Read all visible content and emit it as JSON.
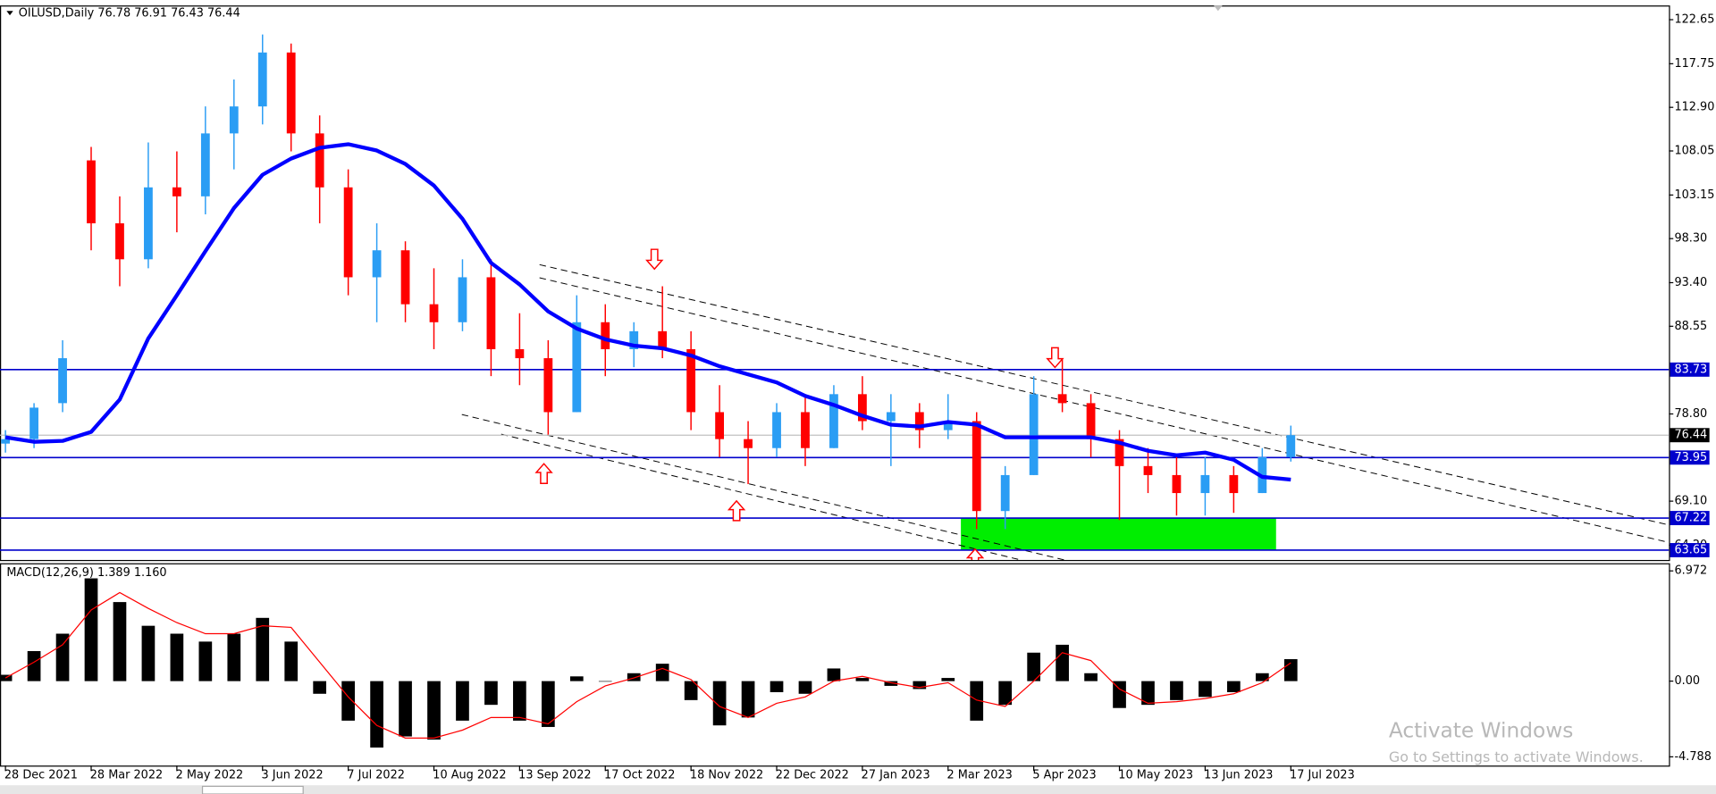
{
  "chart_data": [
    {
      "type": "candlestick",
      "title": "OILUSD,Daily",
      "ohlc_last": [
        76.78,
        76.91,
        76.43,
        76.44
      ],
      "categories": [
        "28 Dec 2021",
        null,
        null,
        "28 Mar 2022",
        null,
        null,
        "2 May 2022",
        null,
        null,
        "3 Jun 2022",
        null,
        null,
        "7 Jul 2022",
        null,
        null,
        "10 Aug 2022",
        null,
        null,
        "13 Sep 2022",
        null,
        null,
        "17 Oct 2022",
        null,
        null,
        "18 Nov 2022",
        null,
        null,
        "22 Dec 2022",
        null,
        null,
        "27 Jan 2023",
        null,
        null,
        "2 Mar 2023",
        null,
        null,
        "5 Apr 2023",
        null,
        null,
        "10 May 2023",
        null,
        null,
        "13 Jun 2023",
        null,
        null,
        "17 Jul 2023"
      ],
      "open": [
        75.5,
        76,
        80,
        107,
        100,
        96,
        104,
        103,
        110,
        113,
        119,
        110,
        104,
        94,
        97,
        91,
        89,
        94,
        86,
        85,
        79,
        89,
        86,
        88,
        86,
        79,
        76,
        75,
        79,
        75,
        81,
        78,
        79,
        77,
        78,
        68,
        72,
        81,
        80,
        76,
        73,
        72,
        70,
        72,
        70,
        74
      ],
      "high": [
        77,
        80,
        87,
        108.5,
        103,
        109,
        108,
        113,
        116,
        121,
        120,
        112,
        106,
        100,
        98,
        95,
        96,
        96,
        90,
        87,
        92,
        91,
        89,
        93,
        88,
        82,
        78,
        80,
        81,
        82,
        83,
        81,
        80,
        81,
        79,
        73,
        83,
        85,
        81,
        77,
        75,
        74,
        74,
        73,
        75,
        77.5
      ],
      "low": [
        74.5,
        75,
        79,
        97,
        93,
        95,
        99,
        101,
        106,
        111,
        108,
        100,
        92,
        89,
        89,
        86,
        88,
        83,
        82,
        76.5,
        79,
        83,
        84,
        85,
        77,
        74,
        71,
        74,
        73,
        75,
        77,
        73,
        75,
        76,
        66,
        66,
        72,
        79,
        74,
        67,
        70,
        67.5,
        67.5,
        67.8,
        70,
        73.5
      ],
      "close": [
        76,
        79.5,
        85,
        100,
        96,
        104,
        103,
        110,
        113,
        119,
        110,
        104,
        94,
        97,
        91,
        89,
        94,
        86,
        85,
        79,
        89,
        86,
        88,
        86,
        79,
        76,
        75,
        79,
        75,
        81,
        78,
        79,
        77,
        78,
        68,
        72,
        81,
        80,
        76,
        73,
        72,
        70,
        72,
        70,
        74,
        76.44
      ],
      "up_color": "#2a9df4",
      "down_color": "#ff0000",
      "ma": {
        "color": "#0000ff",
        "values": [
          76.2,
          75.7,
          75.8,
          76.8,
          80.4,
          87.2,
          92,
          96.9,
          101.7,
          105.4,
          107.2,
          108.4,
          108.8,
          108.1,
          106.6,
          104.2,
          100.5,
          95.6,
          93.2,
          90.2,
          88.3,
          87.1,
          86.4,
          86.1,
          85.3,
          84.1,
          83.2,
          82.3,
          80.8,
          79.8,
          78.6,
          77.6,
          77.4,
          77.9,
          77.6,
          76.2,
          76.2,
          76.2,
          76.2,
          75.6,
          74.7,
          74.2,
          74.5,
          73.7,
          71.8,
          71.5
        ]
      },
      "levels": [
        {
          "value": 83.73,
          "color": "#0000cc"
        },
        {
          "value": 73.95,
          "color": "#0000cc"
        },
        {
          "value": 67.22,
          "color": "#0000cc"
        },
        {
          "value": 63.65,
          "color": "#0000cc"
        }
      ],
      "zone_color": "#00ee00",
      "ylim": [
        62.56,
        124.23
      ],
      "yticks": [
        122.65,
        117.75,
        {
          "value": 112.9,
          "label": "112.90"
        },
        108.05,
        103.15,
        {
          "value": 98.3,
          "label": "98.30"
        },
        {
          "value": 93.4,
          "label": "93.40"
        },
        88.55,
        {
          "value": 78.8,
          "label": "78.80"
        },
        {
          "value": 69.1,
          "label": "69.10"
        },
        {
          "value": 64.2,
          "label": "64.20"
        }
      ]
    },
    {
      "type": "macd",
      "title": "MACD(12,26,9) 1.389 1.160",
      "histogram": {
        "color": "#000000",
        "values": [
          0.4,
          1.9,
          3,
          6.5,
          5,
          3.5,
          3,
          2.5,
          3,
          4,
          2.5,
          -0.8,
          -2.5,
          -4.2,
          -3.5,
          -3.7,
          -2.5,
          -1.5,
          -2.5,
          -2.9,
          0.3,
          0,
          0.5,
          1.1,
          -1.2,
          -2.8,
          -2.3,
          -0.7,
          -0.8,
          0.8,
          0.2,
          -0.3,
          -0.5,
          0.2,
          -2.5,
          -1.5,
          1.8,
          2.3,
          0.5,
          -1.7,
          -1.5,
          -1.2,
          -1,
          -0.7,
          0.5,
          1.389
        ]
      },
      "signal": {
        "color": "#ff0000",
        "values": [
          0.2,
          1.2,
          2.3,
          4.5,
          5.6,
          4.6,
          3.7,
          3,
          3,
          3.5,
          3.4,
          1.2,
          -1,
          -2.8,
          -3.6,
          -3.6,
          -3.1,
          -2.3,
          -2.3,
          -2.7,
          -1.3,
          -0.3,
          0.2,
          0.8,
          0.1,
          -1.6,
          -2.3,
          -1.4,
          -1,
          0,
          0.3,
          -0.1,
          -0.4,
          -0.1,
          -1.2,
          -1.6,
          0,
          1.8,
          1.3,
          -0.5,
          -1.4,
          -1.3,
          -1.1,
          -0.8,
          -0.1,
          1.16
        ]
      },
      "ylim": [
        -5.341,
        7.387
      ],
      "yticks": [
        6.972,
        {
          "value": 0,
          "label": "0.00"
        },
        -4.788
      ]
    }
  ],
  "watermark": {
    "title": "Activate Windows",
    "subtitle": "Go to Settings to activate Windows."
  }
}
